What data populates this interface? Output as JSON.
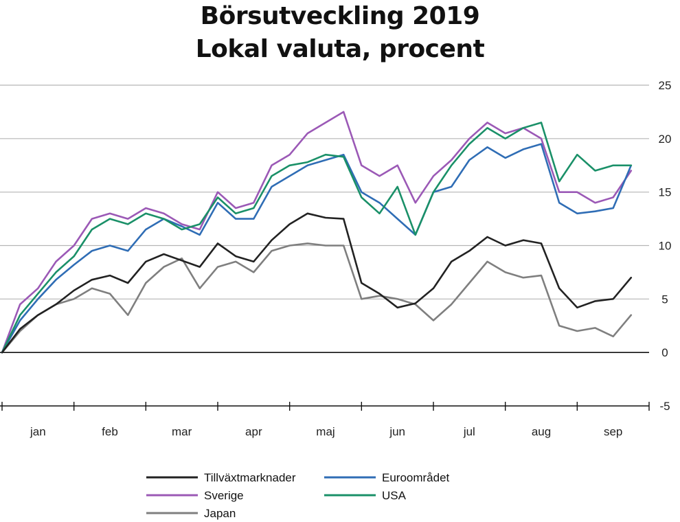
{
  "title": "Börsutveckling 2019",
  "subtitle": "Lokal valuta, procent",
  "chart_data": {
    "type": "line",
    "title": "Börsutveckling 2019",
    "subtitle": "Lokal valuta, procent",
    "xlabel": "",
    "ylabel": "",
    "ylim": [
      -5,
      25
    ],
    "y_ticks": [
      25,
      20,
      15,
      10,
      5,
      0,
      -5
    ],
    "x_months": [
      "jan",
      "feb",
      "mar",
      "apr",
      "maj",
      "jun",
      "jul",
      "aug",
      "sep"
    ],
    "grid": true,
    "legend_position": "bottom",
    "x": [
      0,
      0.25,
      0.5,
      0.75,
      1,
      1.25,
      1.5,
      1.75,
      2,
      2.25,
      2.5,
      2.75,
      3,
      3.25,
      3.5,
      3.75,
      4,
      4.25,
      4.5,
      4.75,
      5,
      5.25,
      5.5,
      5.75,
      6,
      6.25,
      6.5,
      6.75,
      7,
      7.25,
      7.5,
      7.75,
      8,
      8.25,
      8.5,
      8.75
    ],
    "series": [
      {
        "name": "Tillväxtmarknader",
        "color": "#222222",
        "values": [
          0,
          2.2,
          3.5,
          4.5,
          5.8,
          6.8,
          7.2,
          6.5,
          8.5,
          9.2,
          8.6,
          8.0,
          10.2,
          9.0,
          8.5,
          10.5,
          12.0,
          13.0,
          12.6,
          12.5,
          6.5,
          5.5,
          4.2,
          4.6,
          6.0,
          8.5,
          9.5,
          10.8,
          10.0,
          10.5,
          10.2,
          6.0,
          4.2,
          4.8,
          5.0,
          7.0
        ]
      },
      {
        "name": "Euroområdet",
        "color": "#2f6db5",
        "values": [
          0,
          3.0,
          5.0,
          6.8,
          8.2,
          9.5,
          10.0,
          9.5,
          11.5,
          12.5,
          11.8,
          11.0,
          14.0,
          12.5,
          12.5,
          15.5,
          16.5,
          17.5,
          18.0,
          18.5,
          15.0,
          14.0,
          12.5,
          11.0,
          15.0,
          15.5,
          18.0,
          19.2,
          18.2,
          19.0,
          19.5,
          14.0,
          13.0,
          13.2,
          13.5,
          17.5
        ]
      },
      {
        "name": "Sverige",
        "color": "#9b59b6",
        "values": [
          0,
          4.5,
          6.0,
          8.5,
          10.0,
          12.5,
          13.0,
          12.5,
          13.5,
          13.0,
          12.0,
          11.5,
          15.0,
          13.5,
          14.0,
          17.5,
          18.5,
          20.5,
          21.5,
          22.5,
          17.5,
          16.5,
          17.5,
          14.0,
          16.5,
          18.0,
          20.0,
          21.5,
          20.5,
          21.0,
          20.0,
          15.0,
          15.0,
          14.0,
          14.5,
          17.0
        ]
      },
      {
        "name": "USA",
        "color": "#1a9068",
        "values": [
          0,
          3.5,
          5.5,
          7.5,
          9.0,
          11.5,
          12.5,
          12.0,
          13.0,
          12.5,
          11.5,
          12.0,
          14.5,
          13.0,
          13.5,
          16.5,
          17.5,
          17.8,
          18.5,
          18.3,
          14.5,
          13.0,
          15.5,
          11.0,
          15.0,
          17.5,
          19.5,
          21.0,
          20.0,
          21.0,
          21.5,
          16.0,
          18.5,
          17.0,
          17.5,
          17.5
        ]
      },
      {
        "name": "Japan",
        "color": "#7f7f7f",
        "values": [
          0,
          2.0,
          3.5,
          4.5,
          5.0,
          6.0,
          5.5,
          3.5,
          6.5,
          8.0,
          8.8,
          6.0,
          8.0,
          8.5,
          7.5,
          9.5,
          10.0,
          10.2,
          10.0,
          10.0,
          5.0,
          5.3,
          5.0,
          4.5,
          3.0,
          4.5,
          6.5,
          8.5,
          7.5,
          7.0,
          7.2,
          2.5,
          2.0,
          2.3,
          1.5,
          3.5
        ]
      }
    ]
  },
  "legend": [
    {
      "label": "Tillväxtmarknader",
      "color": "#222222"
    },
    {
      "label": "Euroområdet",
      "color": "#2f6db5"
    },
    {
      "label": "Sverige",
      "color": "#9b59b6"
    },
    {
      "label": "USA",
      "color": "#1a9068"
    },
    {
      "label": "Japan",
      "color": "#7f7f7f"
    }
  ]
}
